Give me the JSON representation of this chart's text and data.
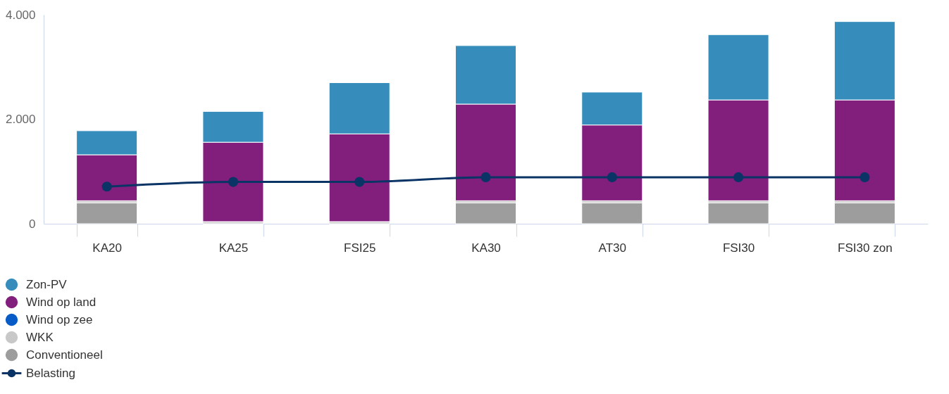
{
  "chart_data": {
    "type": "bar",
    "stacked": true,
    "categories": [
      "KA20",
      "KA25",
      "FSI25",
      "KA30",
      "AT30",
      "FSI30",
      "FSI30 zon"
    ],
    "series": [
      {
        "name": "Conventioneel",
        "color": "#9d9d9d",
        "values": [
          400,
          0,
          0,
          400,
          400,
          400,
          400
        ]
      },
      {
        "name": "WKK",
        "color": "#c8c8c8",
        "values": [
          40,
          40,
          40,
          40,
          40,
          40,
          40
        ]
      },
      {
        "name": "Wind op zee",
        "color": "#065bc6",
        "values": [
          0,
          0,
          0,
          0,
          0,
          0,
          0
        ]
      },
      {
        "name": "Wind op land",
        "color": "#821e7c",
        "values": [
          880,
          1520,
          1680,
          1850,
          1450,
          1930,
          1930
        ]
      },
      {
        "name": "Zon-PV",
        "color": "#368dbb",
        "values": [
          460,
          590,
          980,
          1120,
          630,
          1250,
          1500
        ]
      },
      {
        "name": "Belasting",
        "type": "line",
        "color": "#0a3366",
        "values": [
          710,
          800,
          800,
          890,
          890,
          890,
          890
        ]
      }
    ],
    "ylim": [
      0,
      4000
    ],
    "yticks": [
      {
        "value": 0,
        "label": "0"
      },
      {
        "value": 2000,
        "label": "2.000"
      },
      {
        "value": 4000,
        "label": "4.000"
      }
    ],
    "grid": false,
    "legend": "bottom left",
    "marker": "circle",
    "line_style": "solid"
  }
}
